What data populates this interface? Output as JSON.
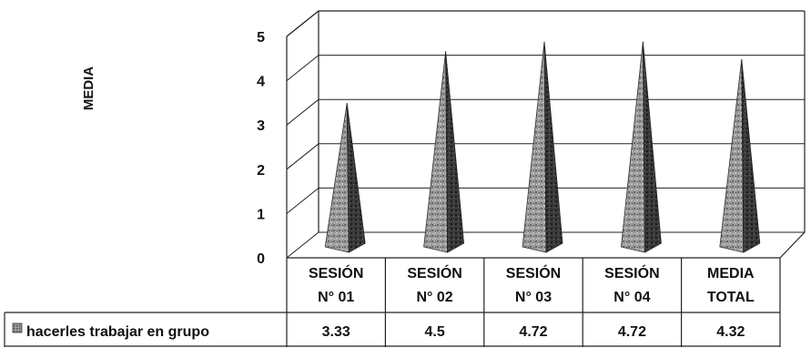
{
  "chart_data": {
    "type": "bar",
    "bar_shape": "pyramid-3d",
    "categories": [
      [
        "SESIÓN",
        "N° 01"
      ],
      [
        "SESIÓN",
        "N° 02"
      ],
      [
        "SESIÓN",
        "N° 03"
      ],
      [
        "SESIÓN",
        "N° 04"
      ],
      [
        "MEDIA",
        "TOTAL"
      ]
    ],
    "series": [
      {
        "name": "hacerles trabajar en grupo",
        "values": [
          3.33,
          4.5,
          4.72,
          4.72,
          4.32
        ],
        "value_labels": [
          "3.33",
          "4.5",
          "4.72",
          "4.72",
          "4.32"
        ]
      }
    ],
    "ylabel": "MEDIA",
    "ylim": [
      0,
      5
    ],
    "yticks": [
      "0",
      "1",
      "2",
      "3",
      "4",
      "5"
    ],
    "grid": true,
    "data_table": true,
    "legend": "data-table-row",
    "colors": {
      "bar_light": "#c9c9c9",
      "bar_mid": "#8a8a8a",
      "bar_dark": "#2a2a2a",
      "grid": "#222222"
    }
  }
}
